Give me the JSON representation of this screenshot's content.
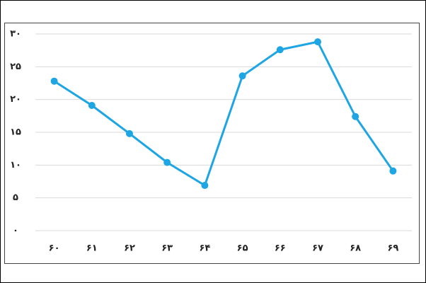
{
  "chart_data": {
    "type": "line",
    "categories": [
      "۶۰",
      "۶۱",
      "۶۲",
      "۶۳",
      "۶۴",
      "۶۵",
      "۶۶",
      "۶۷",
      "۶۸",
      "۶۹"
    ],
    "series": [
      {
        "color": "#1ea5e3",
        "values": [
          22.8,
          19.1,
          14.8,
          10.4,
          6.9,
          23.6,
          27.6,
          28.8,
          17.4,
          9.1
        ]
      }
    ],
    "ylim": [
      0,
      30
    ],
    "yticks": [
      {
        "value": 0,
        "label": "۰"
      },
      {
        "value": 5,
        "label": "۵"
      },
      {
        "value": 10,
        "label": "۱۰"
      },
      {
        "value": 15,
        "label": "۱۵"
      },
      {
        "value": 20,
        "label": "۲۰"
      },
      {
        "value": 25,
        "label": "۲۵"
      },
      {
        "value": 30,
        "label": "۳۰"
      }
    ],
    "grid": true
  }
}
